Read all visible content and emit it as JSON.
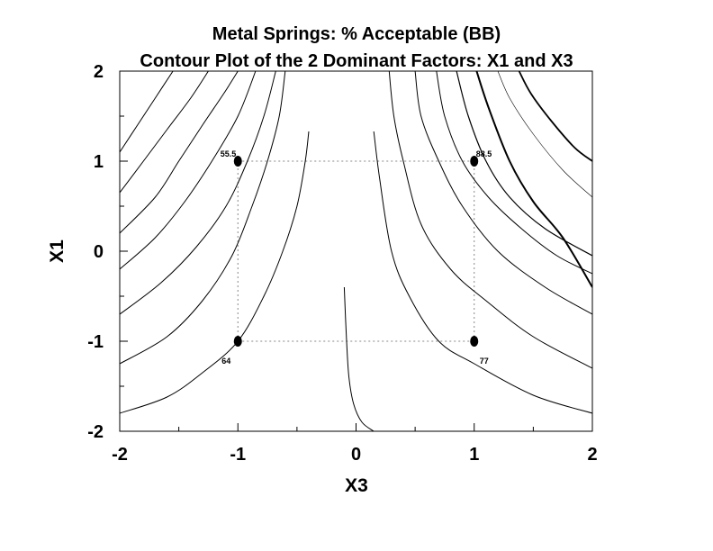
{
  "chart_data": {
    "type": "contour",
    "title": "Metal Springs: % Acceptable (BB)",
    "subtitle": "Contour Plot of the 2 Dominant Factors: X1 and X3",
    "xlabel": "X3",
    "ylabel": "X1",
    "xlim": [
      -2,
      2
    ],
    "ylim": [
      -2,
      2
    ],
    "x_ticks": [
      -2,
      -1,
      0,
      1,
      2
    ],
    "y_ticks": [
      -2,
      -1,
      0,
      1,
      2
    ],
    "grid": false,
    "colors": {
      "line": "#000000",
      "guide": "#888888"
    },
    "design_points": [
      {
        "x3": -1,
        "x1": 1,
        "response": "55.5"
      },
      {
        "x3": 1,
        "x1": 1,
        "response": "88.5"
      },
      {
        "x3": -1,
        "x1": -1,
        "response": "64"
      },
      {
        "x3": 1,
        "x1": -1,
        "response": "77"
      }
    ],
    "contours": [
      {
        "side": "left",
        "points": [
          [
            -2,
            1.1
          ],
          [
            -1.85,
            1.4
          ],
          [
            -1.7,
            1.7
          ],
          [
            -1.55,
            2.0
          ]
        ]
      },
      {
        "side": "left",
        "points": [
          [
            -2,
            0.65
          ],
          [
            -1.8,
            1.0
          ],
          [
            -1.6,
            1.35
          ],
          [
            -1.4,
            1.7
          ],
          [
            -1.25,
            2.0
          ]
        ]
      },
      {
        "side": "left",
        "points": [
          [
            -2,
            0.2
          ],
          [
            -1.7,
            0.6
          ],
          [
            -1.5,
            1.0
          ],
          [
            -1.3,
            1.4
          ],
          [
            -1.12,
            1.75
          ],
          [
            -1.0,
            2.0
          ]
        ]
      },
      {
        "side": "left",
        "points": [
          [
            -2,
            -0.2
          ],
          [
            -1.7,
            0.15
          ],
          [
            -1.45,
            0.55
          ],
          [
            -1.22,
            1.0
          ],
          [
            -1.0,
            1.5
          ],
          [
            -0.85,
            2.0
          ]
        ]
      },
      {
        "side": "left",
        "points": [
          [
            -2,
            -0.7
          ],
          [
            -1.65,
            -0.35
          ],
          [
            -1.35,
            0.05
          ],
          [
            -1.1,
            0.5
          ],
          [
            -0.92,
            1.0
          ],
          [
            -0.78,
            1.5
          ],
          [
            -0.68,
            2.0
          ]
        ]
      },
      {
        "side": "left",
        "points": [
          [
            -2,
            -1.25
          ],
          [
            -1.6,
            -0.95
          ],
          [
            -1.3,
            -0.55
          ],
          [
            -1.05,
            -0.05
          ],
          [
            -0.88,
            0.5
          ],
          [
            -0.75,
            1.0
          ],
          [
            -0.65,
            1.5
          ],
          [
            -0.6,
            2.0
          ]
        ]
      },
      {
        "side": "left",
        "points": [
          [
            -2,
            -1.8
          ],
          [
            -1.6,
            -1.62
          ],
          [
            -1.3,
            -1.35
          ],
          [
            -1.0,
            -1.0
          ],
          [
            -0.78,
            -0.5
          ],
          [
            -0.62,
            0.0
          ],
          [
            -0.5,
            0.5
          ],
          [
            -0.43,
            1.0
          ],
          [
            -0.4,
            1.33
          ]
        ]
      },
      {
        "side": "center",
        "points": [
          [
            -0.1,
            -0.4
          ],
          [
            -0.08,
            -1.0
          ],
          [
            -0.06,
            -1.4
          ],
          [
            -0.02,
            -1.7
          ],
          [
            0.05,
            -1.9
          ],
          [
            0.15,
            -2.0
          ]
        ]
      },
      {
        "side": "right",
        "points": [
          [
            0.15,
            1.33
          ],
          [
            0.2,
            0.8
          ],
          [
            0.3,
            0.0
          ],
          [
            0.45,
            -0.5
          ],
          [
            0.7,
            -1.0
          ],
          [
            1.0,
            -1.25
          ],
          [
            1.5,
            -1.6
          ],
          [
            2,
            -1.8
          ]
        ]
      },
      {
        "side": "right",
        "points": [
          [
            0.28,
            2.0
          ],
          [
            0.32,
            1.5
          ],
          [
            0.4,
            1.0
          ],
          [
            0.55,
            0.3
          ],
          [
            0.8,
            -0.2
          ],
          [
            1.1,
            -0.55
          ],
          [
            1.5,
            -0.95
          ],
          [
            2,
            -1.3
          ]
        ]
      },
      {
        "side": "right",
        "points": [
          [
            0.5,
            2.0
          ],
          [
            0.55,
            1.5
          ],
          [
            0.7,
            1.0
          ],
          [
            0.9,
            0.5
          ],
          [
            1.2,
            0.0
          ],
          [
            1.6,
            -0.4
          ],
          [
            2,
            -0.7
          ]
        ]
      },
      {
        "side": "right",
        "points": [
          [
            0.68,
            2.0
          ],
          [
            0.75,
            1.5
          ],
          [
            0.9,
            1.0
          ],
          [
            1.12,
            0.6
          ],
          [
            1.4,
            0.25
          ],
          [
            1.7,
            -0.05
          ],
          [
            2,
            -0.25
          ]
        ]
      },
      {
        "side": "right",
        "points": [
          [
            0.85,
            2.0
          ],
          [
            0.95,
            1.5
          ],
          [
            1.1,
            1.0
          ],
          [
            1.3,
            0.6
          ],
          [
            1.6,
            0.25
          ],
          [
            2,
            -0.05
          ]
        ],
        "width": 1.2
      },
      {
        "side": "right",
        "points": [
          [
            1.02,
            2.0
          ],
          [
            1.12,
            1.6
          ],
          [
            1.3,
            1.0
          ],
          [
            1.5,
            0.55
          ],
          [
            1.75,
            0.15
          ],
          [
            2,
            -0.4
          ]
        ],
        "width": 2.0
      },
      {
        "side": "right",
        "points": [
          [
            1.2,
            2.0
          ],
          [
            1.3,
            1.7
          ],
          [
            1.5,
            1.3
          ],
          [
            1.75,
            0.9
          ],
          [
            2,
            0.6
          ]
        ],
        "width": 0.6
      },
      {
        "side": "right",
        "points": [
          [
            1.38,
            2.0
          ],
          [
            1.48,
            1.75
          ],
          [
            1.65,
            1.45
          ],
          [
            1.85,
            1.15
          ],
          [
            2,
            1.0
          ]
        ],
        "width": 1.8
      }
    ]
  }
}
